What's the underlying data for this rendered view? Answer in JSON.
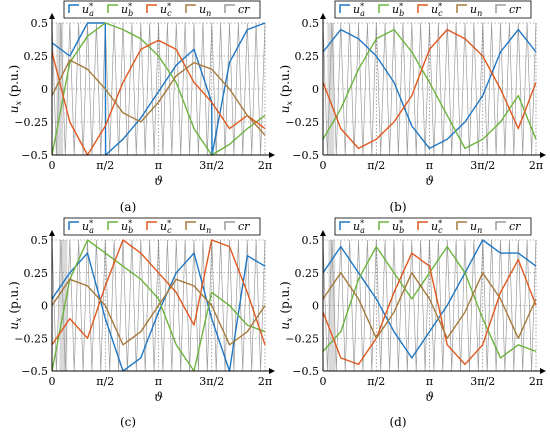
{
  "chart_data": [
    {
      "type": "line",
      "panel_label": "(a)",
      "xlabel": "ϑ",
      "ylabel": "u_x (p.u.)",
      "xlim": [
        0,
        6.2832
      ],
      "ylim": [
        -0.5,
        0.5
      ],
      "xtick_labels": [
        "0",
        "π/2",
        "π",
        "3π/2",
        "2π"
      ],
      "ytick_labels": [
        "0.5",
        "0.25",
        "0",
        "−0.25",
        "−0.5"
      ],
      "grid": true,
      "legend": [
        "u*_a",
        "u*_b",
        "u*_c",
        "u_n",
        "cr"
      ],
      "highlight_band": [
        0.13,
        0.33
      ],
      "zero_seq": "saw",
      "series": [
        {
          "name": "u*_a",
          "x": [
            0,
            0.524,
            1.047,
            1.571,
            1.58,
            2.094,
            2.618,
            3.142,
            3.665,
            4.189,
            4.712,
            4.72,
            5.236,
            5.76,
            6.283
          ],
          "y": [
            0.35,
            0.25,
            0.5,
            0.5,
            -0.5,
            -0.38,
            -0.22,
            -0.02,
            0.18,
            0.3,
            -0.1,
            -0.5,
            0.2,
            0.45,
            0.5
          ]
        },
        {
          "name": "u*_b",
          "x": [
            0,
            0.524,
            1.047,
            1.571,
            2.094,
            2.618,
            3.142,
            3.665,
            4.189,
            4.712,
            5.236,
            5.76,
            6.283
          ],
          "y": [
            -0.5,
            0.2,
            0.4,
            0.5,
            0.45,
            0.38,
            0.25,
            0.05,
            -0.3,
            -0.5,
            -0.42,
            -0.3,
            -0.2
          ]
        },
        {
          "name": "u*_c",
          "x": [
            0,
            0.524,
            1.047,
            1.571,
            2.094,
            2.618,
            3.142,
            3.665,
            4.189,
            4.712,
            5.236,
            5.76,
            6.283
          ],
          "y": [
            0.28,
            -0.25,
            -0.5,
            -0.28,
            0.05,
            0.3,
            0.37,
            0.3,
            0.05,
            -0.1,
            -0.3,
            -0.2,
            -0.3
          ]
        },
        {
          "name": "u_n",
          "x": [
            0,
            0.524,
            1.047,
            1.571,
            2.094,
            2.618,
            3.142,
            3.665,
            4.189,
            4.712,
            5.236,
            5.76,
            6.283
          ],
          "y": [
            -0.05,
            0.22,
            0.15,
            0.0,
            -0.18,
            -0.25,
            -0.1,
            0.1,
            0.2,
            0.15,
            0.0,
            -0.2,
            -0.35
          ]
        }
      ]
    },
    {
      "type": "line",
      "panel_label": "(b)",
      "xlabel": "ϑ",
      "ylabel": "u_x (p.u.)",
      "xlim": [
        0,
        6.2832
      ],
      "ylim": [
        -0.5,
        0.5
      ],
      "xtick_labels": [
        "0",
        "π/2",
        "π",
        "3π/2",
        "2π"
      ],
      "ytick_labels": [
        "0.5",
        "0.25",
        "0",
        "−0.25",
        "−0.5"
      ],
      "grid": true,
      "legend": [
        "u*_a",
        "u*_b",
        "u*_c",
        "u_n",
        "cr"
      ],
      "highlight_band": [
        0.13,
        0.33
      ],
      "zero_seq": "scallop",
      "series": [
        {
          "name": "u*_a",
          "x": [
            0,
            0.524,
            1.047,
            1.571,
            2.094,
            2.618,
            3.142,
            3.665,
            4.189,
            4.712,
            5.236,
            5.76,
            6.283
          ],
          "y": [
            0.28,
            0.45,
            0.38,
            0.25,
            0.05,
            -0.28,
            -0.45,
            -0.38,
            -0.25,
            -0.05,
            0.28,
            0.45,
            0.28
          ]
        },
        {
          "name": "u*_b",
          "x": [
            0,
            0.524,
            1.047,
            1.571,
            2.094,
            2.618,
            3.142,
            3.665,
            4.189,
            4.712,
            5.236,
            5.76,
            6.283
          ],
          "y": [
            -0.38,
            -0.15,
            0.15,
            0.38,
            0.45,
            0.28,
            0.05,
            -0.2,
            -0.45,
            -0.38,
            -0.25,
            -0.05,
            -0.38
          ]
        },
        {
          "name": "u*_c",
          "x": [
            0,
            0.524,
            1.047,
            1.571,
            2.094,
            2.618,
            3.142,
            3.665,
            4.189,
            4.712,
            5.236,
            5.76,
            6.283
          ],
          "y": [
            0.05,
            -0.3,
            -0.45,
            -0.38,
            -0.25,
            -0.05,
            0.3,
            0.45,
            0.38,
            0.25,
            0.0,
            -0.3,
            0.05
          ]
        }
      ]
    },
    {
      "type": "line",
      "panel_label": "(c)",
      "xlabel": "ϑ",
      "ylabel": "u_x (p.u.)",
      "xlim": [
        0,
        6.2832
      ],
      "ylim": [
        -0.5,
        0.5
      ],
      "xtick_labels": [
        "0",
        "π/2",
        "π",
        "3π/2",
        "2π"
      ],
      "ytick_labels": [
        "0.5",
        "0.25",
        "0",
        "−0.25",
        "−0.5"
      ],
      "grid": true,
      "legend": [
        "u*_a",
        "u*_b",
        "u*_c",
        "u_n",
        "cr"
      ],
      "highlight_band": [
        0.22,
        0.45
      ],
      "zero_seq": "saw2",
      "series": [
        {
          "name": "u*_a",
          "x": [
            0,
            0.524,
            1.047,
            1.571,
            2.094,
            2.618,
            3.142,
            3.665,
            4.189,
            4.712,
            5.236,
            5.76,
            6.283
          ],
          "y": [
            0.05,
            0.25,
            0.4,
            -0.1,
            -0.5,
            -0.4,
            -0.05,
            0.25,
            0.4,
            -0.1,
            -0.5,
            0.38,
            0.3
          ]
        },
        {
          "name": "u*_b",
          "x": [
            0,
            0.524,
            1.047,
            1.571,
            2.094,
            2.618,
            3.142,
            3.665,
            4.189,
            4.712,
            5.236,
            5.76,
            6.283
          ],
          "y": [
            -0.5,
            0.2,
            0.5,
            0.4,
            0.3,
            0.2,
            0.05,
            -0.3,
            -0.5,
            0.1,
            0.0,
            -0.15,
            -0.2
          ]
        },
        {
          "name": "u*_c",
          "x": [
            0,
            0.524,
            1.047,
            1.571,
            2.094,
            2.618,
            3.142,
            3.665,
            4.189,
            4.712,
            5.236,
            5.76,
            6.283
          ],
          "y": [
            -0.3,
            -0.1,
            -0.25,
            0.15,
            0.5,
            0.4,
            0.25,
            0.1,
            -0.15,
            0.5,
            0.45,
            0.1,
            -0.3
          ]
        },
        {
          "name": "u_n",
          "x": [
            0,
            0.524,
            1.047,
            1.571,
            2.094,
            2.618,
            3.142,
            3.665,
            4.189,
            4.712,
            5.236,
            5.76,
            6.283
          ],
          "y": [
            0.0,
            0.2,
            0.15,
            0.0,
            -0.3,
            -0.2,
            0.0,
            0.2,
            0.15,
            0.0,
            -0.3,
            -0.2,
            0.0
          ]
        }
      ]
    },
    {
      "type": "line",
      "panel_label": "(d)",
      "xlabel": "ϑ",
      "ylabel": "u_x (p.u.)",
      "xlim": [
        0,
        6.2832
      ],
      "ylim": [
        -0.5,
        0.5
      ],
      "xtick_labels": [
        "0",
        "π/2",
        "π",
        "3π/2",
        "2π"
      ],
      "ytick_labels": [
        "0.5",
        "0.25",
        "0",
        "−0.25",
        "−0.5"
      ],
      "grid": true,
      "legend": [
        "u*_a",
        "u*_b",
        "u*_c",
        "u_n",
        "cr"
      ],
      "highlight_band": [
        0.16,
        0.36
      ],
      "zero_seq": "zigzag",
      "series": [
        {
          "name": "u*_a",
          "x": [
            0,
            0.524,
            1.047,
            1.571,
            2.094,
            2.618,
            3.142,
            3.665,
            4.189,
            4.712,
            5.236,
            5.76,
            6.283
          ],
          "y": [
            0.25,
            0.45,
            0.25,
            0.05,
            -0.2,
            -0.4,
            -0.2,
            0.0,
            0.25,
            0.5,
            0.4,
            0.4,
            0.3
          ]
        },
        {
          "name": "u*_b",
          "x": [
            0,
            0.524,
            1.047,
            1.571,
            2.094,
            2.618,
            3.142,
            3.665,
            4.189,
            4.712,
            5.236,
            5.76,
            6.283
          ],
          "y": [
            -0.35,
            -0.2,
            0.2,
            0.45,
            0.25,
            0.05,
            0.25,
            0.45,
            0.25,
            -0.1,
            -0.4,
            -0.3,
            -0.35
          ]
        },
        {
          "name": "u*_c",
          "x": [
            0,
            0.524,
            1.047,
            1.571,
            2.094,
            2.618,
            3.142,
            3.665,
            4.189,
            4.712,
            5.236,
            5.76,
            6.283
          ],
          "y": [
            -0.05,
            -0.4,
            -0.45,
            -0.25,
            0.1,
            0.4,
            0.3,
            -0.3,
            -0.45,
            -0.3,
            0.1,
            0.35,
            0.0
          ]
        },
        {
          "name": "u_n",
          "x": [
            0,
            0.524,
            1.047,
            1.571,
            2.094,
            2.618,
            3.142,
            3.665,
            4.189,
            4.712,
            5.236,
            5.76,
            6.283
          ],
          "y": [
            0.05,
            0.25,
            0.05,
            -0.25,
            -0.05,
            0.25,
            0.05,
            -0.25,
            -0.05,
            0.25,
            0.05,
            -0.25,
            0.05
          ]
        }
      ]
    }
  ],
  "colors": {
    "u_a": "#1f77c4",
    "u_b": "#6cb33e",
    "u_c": "#e0581f",
    "u_n": "#a57a3c",
    "cr": "#9a9a9a",
    "band": "#d0d0d0"
  }
}
